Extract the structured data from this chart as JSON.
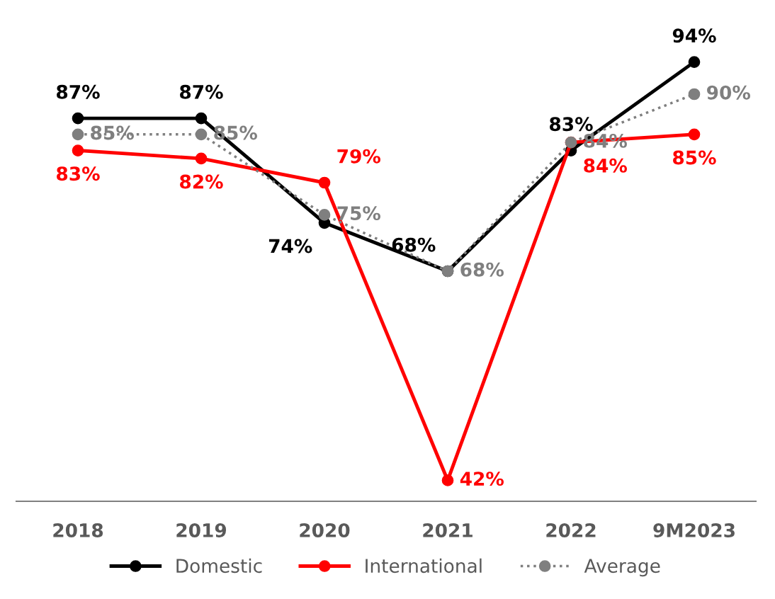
{
  "chart_data": {
    "type": "line",
    "categories": [
      "2018",
      "2019",
      "2020",
      "2021",
      "2022",
      "9M2023"
    ],
    "series": [
      {
        "name": "Domestic",
        "color": "#000000",
        "values": [
          87,
          87,
          74,
          68,
          83,
          94
        ],
        "value_labels": [
          "87%",
          "87%",
          "74%",
          "68%",
          "83%",
          "94%"
        ]
      },
      {
        "name": "International",
        "color": "#ff0000",
        "values": [
          83,
          82,
          79,
          42,
          84,
          85
        ],
        "value_labels": [
          "83%",
          "82%",
          "79%",
          "42%",
          "84%",
          "85%"
        ]
      },
      {
        "name": "Average",
        "color": "#7f7f7f",
        "values": [
          85,
          85,
          75,
          68,
          84,
          90
        ],
        "value_labels": [
          "85%",
          "85%",
          "75%",
          "68%",
          "84%",
          "90%"
        ],
        "line_style": "dotted"
      }
    ],
    "marker": "circle",
    "line_style": "solid",
    "legend": "bottom",
    "grid": false,
    "tick_labels": "x"
  }
}
